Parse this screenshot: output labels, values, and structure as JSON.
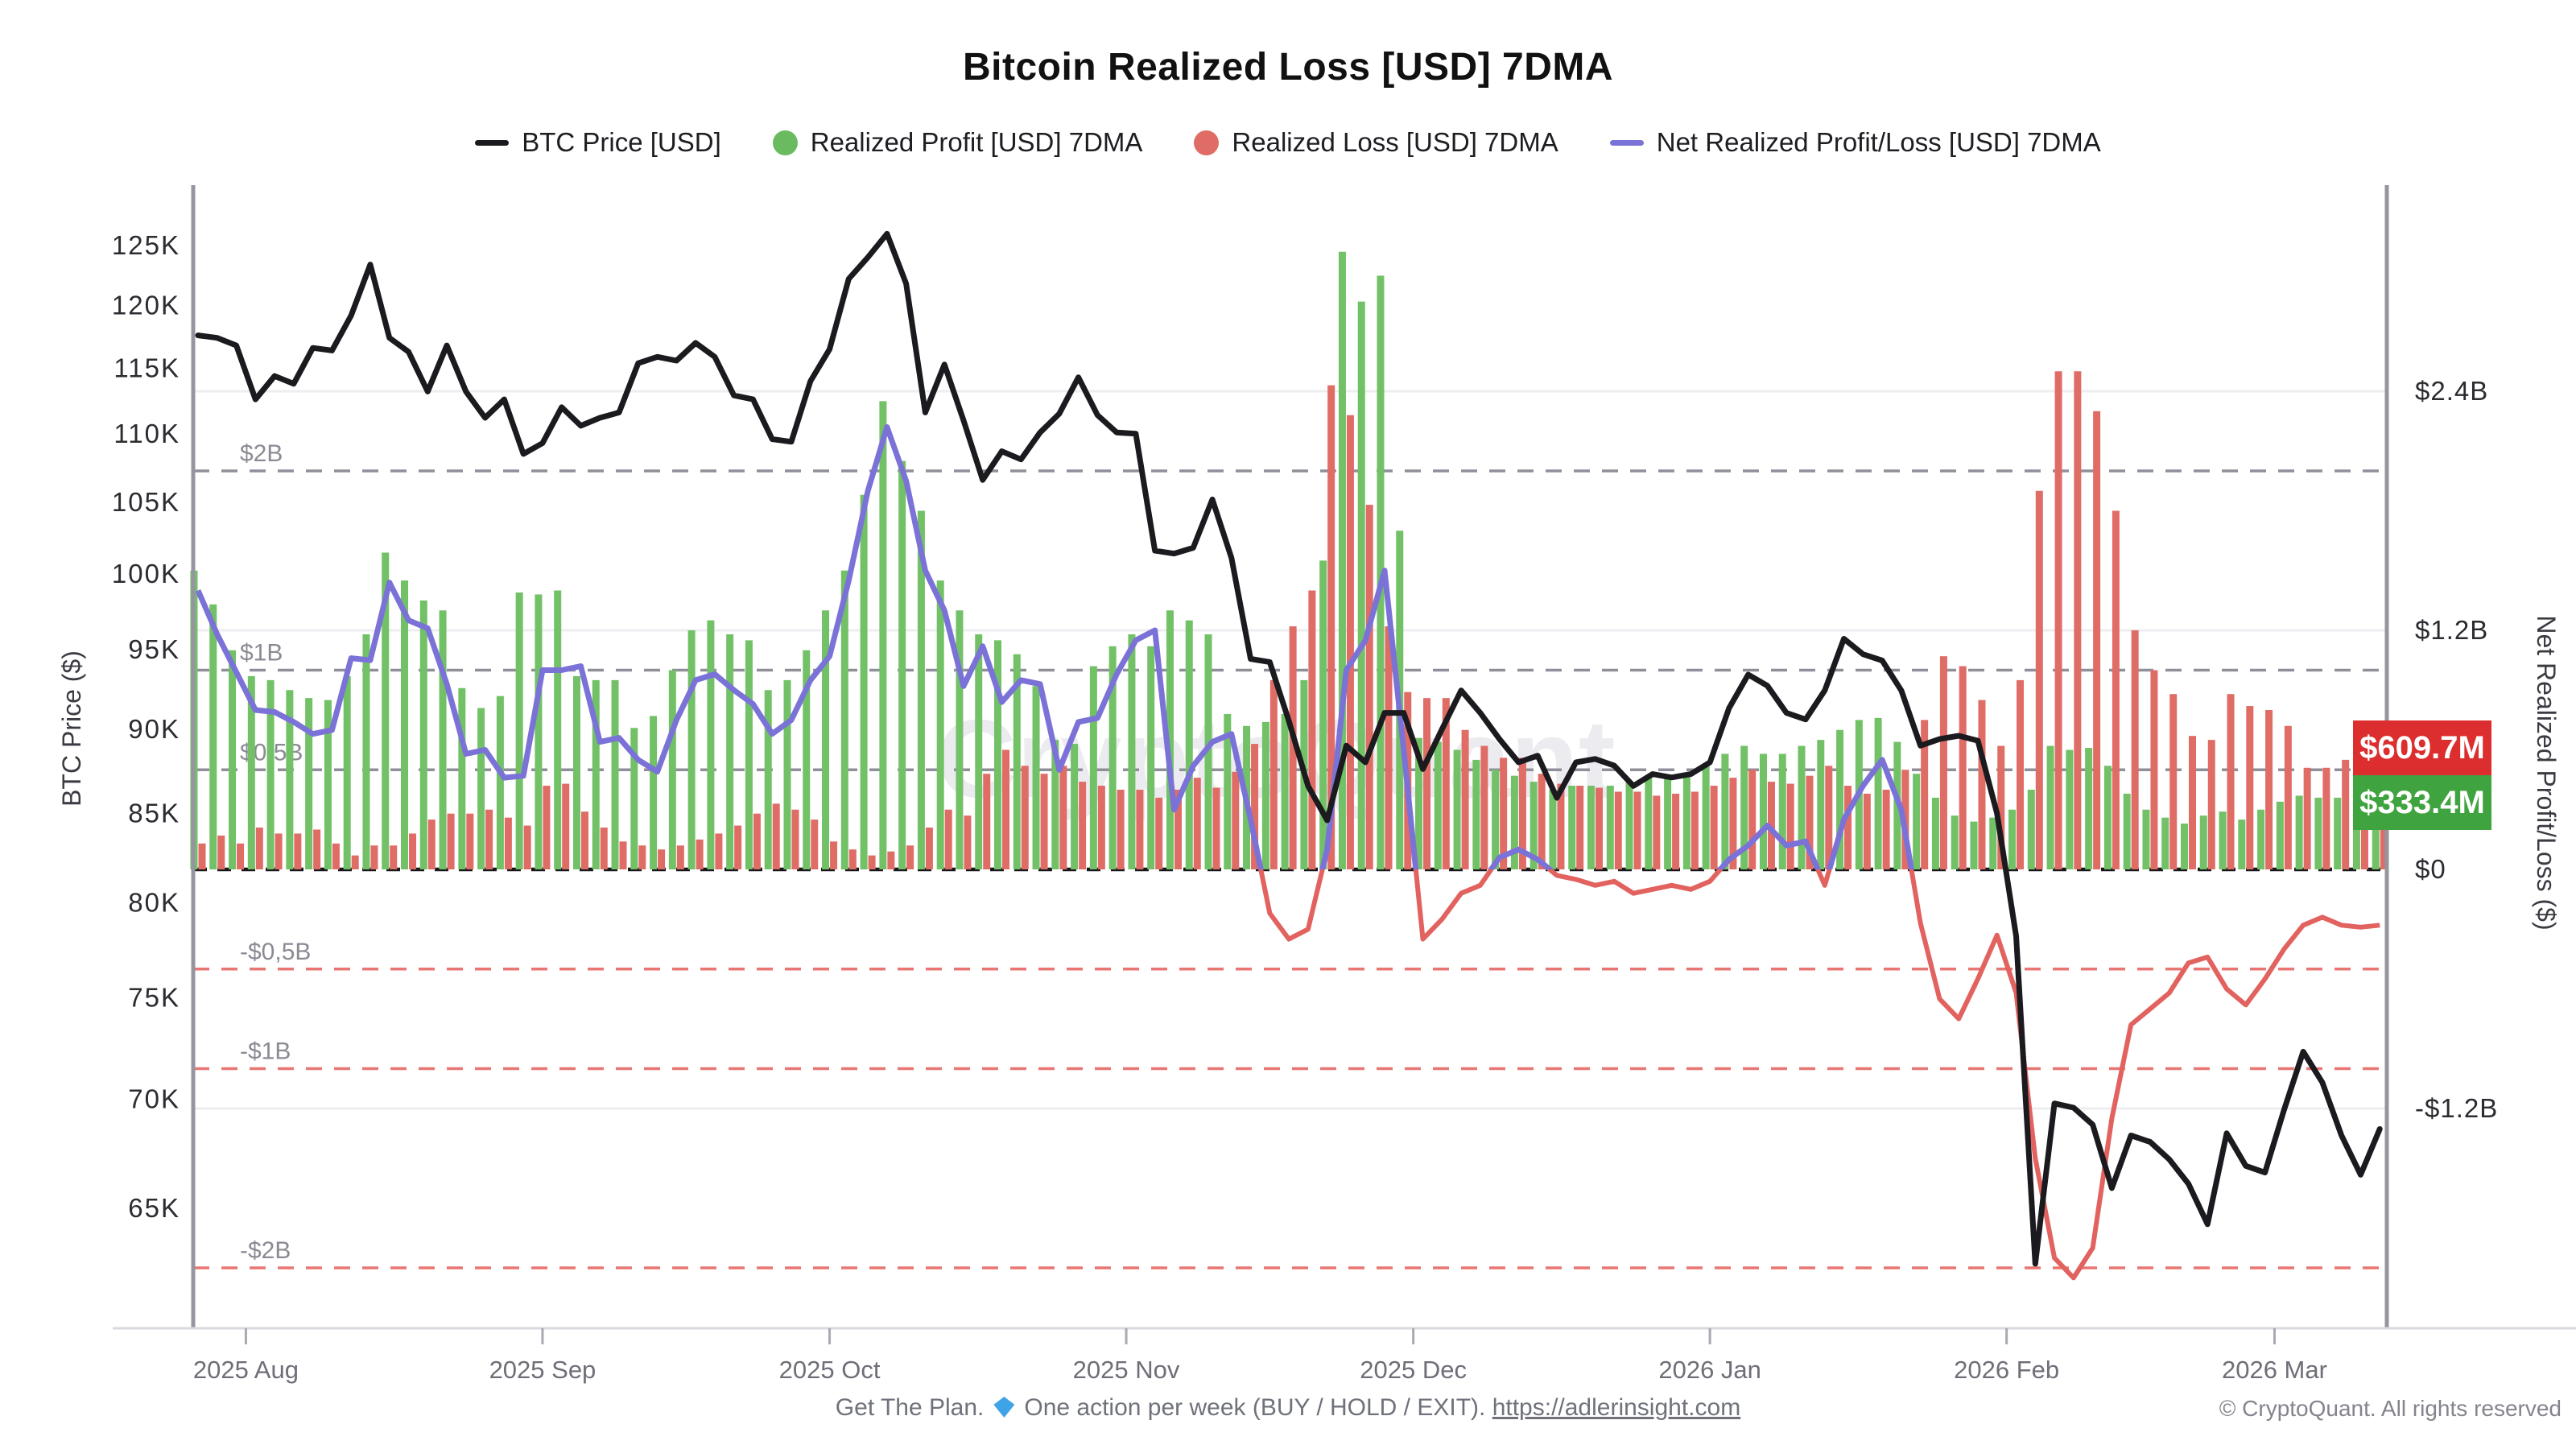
{
  "title": "Bitcoin Realized Loss [USD] 7DMA",
  "legend": [
    {
      "label": "BTC Price [USD]",
      "marker": "line",
      "color": "#1b1b1f"
    },
    {
      "label": "Realized Profit [USD] 7DMA",
      "marker": "dot",
      "color": "#6abb5f"
    },
    {
      "label": "Realized Loss [USD] 7DMA",
      "marker": "dot",
      "color": "#e06c66"
    },
    {
      "label": "Net Realized Profit/Loss [USD] 7DMA",
      "marker": "line",
      "color": "#7b72d8"
    }
  ],
  "axes": {
    "left": {
      "title": "BTC Price ($)",
      "tick_values_k": [
        125,
        120,
        115,
        110,
        105,
        100,
        95,
        90,
        85,
        80,
        75,
        70,
        65
      ],
      "scale": "log"
    },
    "right": {
      "title": "Net Realized Profit/Loss ($)",
      "ticks": [
        {
          "label": "$2.4B",
          "value_b": 2.4
        },
        {
          "label": "$1.2B",
          "value_b": 1.2
        },
        {
          "label": "$0",
          "value_b": 0
        },
        {
          "label": "-$1.2B",
          "value_b": -1.2
        }
      ]
    },
    "x": {
      "ticks": [
        {
          "label": "2025 Aug",
          "day": 5
        },
        {
          "label": "2025 Sep",
          "day": 36
        },
        {
          "label": "2025 Oct",
          "day": 66
        },
        {
          "label": "2025 Nov",
          "day": 97
        },
        {
          "label": "2025 Dec",
          "day": 127
        },
        {
          "label": "2026 Jan",
          "day": 158
        },
        {
          "label": "2026 Feb",
          "day": 189
        },
        {
          "label": "2026 Mar",
          "day": 217
        }
      ]
    }
  },
  "gridlines": {
    "gray_dashed": [
      {
        "label": "$2B",
        "value_b": 2
      },
      {
        "label": "$1B",
        "value_b": 1
      },
      {
        "label": "$0,5B",
        "value_b": 0.5
      }
    ],
    "red_dashed": [
      {
        "label": "-$0,5B",
        "value_b": -0.5
      },
      {
        "label": "-$1B",
        "value_b": -1
      },
      {
        "label": "-$2B",
        "value_b": -2
      }
    ],
    "light_solid_values_b": [
      2.4,
      1.2,
      -1.2
    ],
    "zero_value_b": 0
  },
  "badges": [
    {
      "text": "$609.7M",
      "value_b": 0.6097,
      "color": "#dc2e2e",
      "series": "realized-loss"
    },
    {
      "text": "$333.4M",
      "value_b": 0.3334,
      "color": "#3fa33f",
      "series": "realized-profit"
    }
  ],
  "watermark": "CryptoQuant",
  "footer": {
    "prefix": "Get The Plan.",
    "text": "One action per week (BUY / HOLD / EXIT).",
    "link": "https://adlerinsight.com",
    "copyright": "© CryptoQuant. All rights reserved"
  },
  "colors": {
    "price": "#1b1b1f",
    "profit": "#72c167",
    "loss": "#e06c66",
    "net_pos": "#7b72d8",
    "net_neg": "#e2625f",
    "grid_dash": "#8f8f9a",
    "grid_red": "#e87672",
    "grid_light": "#ededf2",
    "baseline": "#17171c",
    "spine": "#95959f",
    "axis_text": "#2b2b31",
    "month_text": "#6e6e78",
    "inline_label": "#8a8a94",
    "watermark": "#ececf0"
  },
  "chart_data": {
    "type": "mixed",
    "title": "Bitcoin Realized Loss [USD] 7DMA",
    "x_start_date": "2025-07-27",
    "x_end_date": "2026-03-12",
    "interval_days": 2,
    "x_unit": "days since 2025-07-27 (each point = 2 days)",
    "left_axis": {
      "label": "BTC Price ($)",
      "scale": "log",
      "range_k": [
        62,
        127
      ]
    },
    "right_axis": {
      "label": "Net Realized Profit/Loss ($)",
      "range_b": [
        -2.4,
        2.6
      ]
    },
    "legend_position": "top",
    "grid": "dashed reference lines at ±$0.5B, ±$1B, ±$2B",
    "series": [
      {
        "name": "BTC Price [USD]",
        "type": "line",
        "axis": "left",
        "unit": "thousand USD",
        "values": [
          117.6,
          117.4,
          116.8,
          112.6,
          114.4,
          113.8,
          116.6,
          116.4,
          119.2,
          123.4,
          117.4,
          116.3,
          113.2,
          116.8,
          113.2,
          111.2,
          112.6,
          108.5,
          109.3,
          112.0,
          110.6,
          111.2,
          111.6,
          115.4,
          115.9,
          115.6,
          117.0,
          115.9,
          112.9,
          112.6,
          109.6,
          109.4,
          114.0,
          116.5,
          122.2,
          124.0,
          126.0,
          121.8,
          111.6,
          115.3,
          111.0,
          106.6,
          108.7,
          108.1,
          110.1,
          111.5,
          114.3,
          111.4,
          110.1,
          110.0,
          101.6,
          101.4,
          101.8,
          105.2,
          101.1,
          94.4,
          94.2,
          90.5,
          86.6,
          84.6,
          89.0,
          88.0,
          91.0,
          91.0,
          87.6,
          90.0,
          92.4,
          91.0,
          89.4,
          88.0,
          88.4,
          85.9,
          88.0,
          88.2,
          87.8,
          86.6,
          87.3,
          87.1,
          87.3,
          88.0,
          91.3,
          93.4,
          92.7,
          91.0,
          90.6,
          92.4,
          95.7,
          94.7,
          94.3,
          92.4,
          89.0,
          89.4,
          89.6,
          89.3,
          85.0,
          78.2,
          62.6,
          69.8,
          69.6,
          68.8,
          65.9,
          68.3,
          68.0,
          67.2,
          66.1,
          64.3,
          68.4,
          66.9,
          66.6,
          69.5,
          72.3,
          70.8,
          68.3,
          66.5,
          68.6
        ]
      },
      {
        "name": "Realized Profit [USD] 7DMA",
        "type": "bar",
        "axis": "right",
        "unit": "billion USD",
        "values": [
          1.5,
          1.33,
          1.1,
          0.97,
          0.95,
          0.9,
          0.86,
          0.85,
          0.97,
          1.18,
          1.59,
          1.45,
          1.35,
          1.3,
          0.91,
          0.81,
          0.87,
          1.39,
          1.38,
          1.4,
          0.97,
          0.95,
          0.95,
          0.71,
          0.77,
          1.0,
          1.2,
          1.25,
          1.18,
          1.15,
          0.9,
          0.95,
          1.1,
          1.3,
          1.5,
          1.88,
          2.35,
          2.05,
          1.8,
          1.45,
          1.3,
          1.18,
          1.15,
          1.08,
          0.92,
          0.65,
          0.63,
          1.02,
          1.12,
          1.18,
          1.12,
          1.3,
          1.25,
          1.18,
          0.78,
          0.72,
          0.74,
          0.78,
          0.95,
          1.55,
          3.1,
          2.85,
          2.98,
          1.7,
          0.66,
          0.64,
          0.6,
          0.55,
          0.5,
          0.47,
          0.44,
          0.4,
          0.42,
          0.42,
          0.42,
          0.44,
          0.46,
          0.46,
          0.48,
          0.52,
          0.58,
          0.62,
          0.58,
          0.58,
          0.62,
          0.65,
          0.7,
          0.75,
          0.76,
          0.64,
          0.48,
          0.36,
          0.27,
          0.24,
          0.26,
          0.3,
          0.4,
          0.62,
          0.6,
          0.61,
          0.52,
          0.38,
          0.3,
          0.26,
          0.23,
          0.27,
          0.29,
          0.25,
          0.3,
          0.34,
          0.37,
          0.36,
          0.36,
          0.36,
          0.33
        ]
      },
      {
        "name": "Realized Loss [USD] 7DMA",
        "type": "bar",
        "axis": "right",
        "unit": "billion USD",
        "values": [
          0.13,
          0.17,
          0.13,
          0.21,
          0.18,
          0.18,
          0.2,
          0.13,
          0.07,
          0.12,
          0.12,
          0.18,
          0.25,
          0.28,
          0.28,
          0.3,
          0.26,
          0.22,
          0.42,
          0.43,
          0.29,
          0.21,
          0.14,
          0.12,
          0.1,
          0.12,
          0.15,
          0.18,
          0.22,
          0.28,
          0.33,
          0.3,
          0.25,
          0.14,
          0.1,
          0.07,
          0.09,
          0.12,
          0.21,
          0.3,
          0.27,
          0.48,
          0.6,
          0.52,
          0.48,
          0.52,
          0.44,
          0.42,
          0.4,
          0.4,
          0.36,
          0.4,
          0.46,
          0.41,
          0.49,
          0.63,
          0.95,
          1.22,
          1.4,
          2.43,
          2.28,
          1.83,
          1.22,
          0.89,
          0.86,
          0.86,
          0.7,
          0.62,
          0.56,
          0.56,
          0.48,
          0.43,
          0.42,
          0.41,
          0.39,
          0.39,
          0.37,
          0.38,
          0.39,
          0.42,
          0.46,
          0.5,
          0.44,
          0.43,
          0.47,
          0.52,
          0.42,
          0.38,
          0.4,
          0.5,
          0.75,
          1.07,
          1.02,
          0.85,
          0.62,
          0.95,
          1.9,
          2.5,
          2.5,
          2.3,
          1.8,
          1.2,
          1.0,
          0.88,
          0.67,
          0.65,
          0.88,
          0.82,
          0.8,
          0.72,
          0.51,
          0.51,
          0.55,
          0.54,
          0.61
        ]
      },
      {
        "name": "Net Realized Profit/Loss [USD] 7DMA",
        "type": "line",
        "axis": "right",
        "unit": "billion USD",
        "style": "purple above zero, light red below zero",
        "values": [
          1.4,
          1.18,
          0.99,
          0.8,
          0.79,
          0.74,
          0.68,
          0.7,
          1.06,
          1.05,
          1.44,
          1.25,
          1.21,
          0.93,
          0.58,
          0.6,
          0.46,
          0.47,
          1.0,
          1.0,
          1.02,
          0.64,
          0.66,
          0.55,
          0.49,
          0.75,
          0.95,
          0.98,
          0.9,
          0.83,
          0.68,
          0.75,
          0.95,
          1.07,
          1.45,
          1.9,
          2.22,
          1.95,
          1.5,
          1.3,
          0.92,
          1.12,
          0.84,
          0.95,
          0.93,
          0.5,
          0.74,
          0.76,
          0.98,
          1.15,
          1.2,
          0.3,
          0.52,
          0.64,
          0.68,
          0.25,
          -0.22,
          -0.35,
          -0.3,
          0.1,
          1.0,
          1.15,
          1.5,
          0.6,
          -0.35,
          -0.25,
          -0.12,
          -0.08,
          0.06,
          0.1,
          0.05,
          -0.03,
          -0.05,
          -0.08,
          -0.06,
          -0.12,
          -0.1,
          -0.08,
          -0.1,
          -0.06,
          0.05,
          0.12,
          0.22,
          0.12,
          0.14,
          -0.08,
          0.25,
          0.42,
          0.55,
          0.3,
          -0.27,
          -0.65,
          -0.75,
          -0.55,
          -0.33,
          -0.62,
          -1.45,
          -1.95,
          -2.05,
          -1.9,
          -1.25,
          -0.78,
          -0.7,
          -0.62,
          -0.47,
          -0.44,
          -0.6,
          -0.68,
          -0.55,
          -0.4,
          -0.28,
          -0.24,
          -0.28,
          -0.29,
          -0.28
        ]
      }
    ]
  }
}
